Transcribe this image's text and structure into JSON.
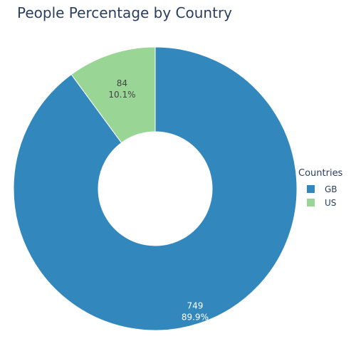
{
  "chart_data": {
    "type": "pie",
    "title": "People Percentage by Country",
    "hole": true,
    "legend": {
      "title": "Countries",
      "placement": "right"
    },
    "slices": [
      {
        "label": "GB",
        "value": 749,
        "percent_label": "89.9%",
        "color": "#3288bd",
        "text_color": "#ffffff"
      },
      {
        "label": "US",
        "value": 84,
        "percent_label": "10.1%",
        "color": "#99d594",
        "text_color": "#444444"
      }
    ]
  }
}
